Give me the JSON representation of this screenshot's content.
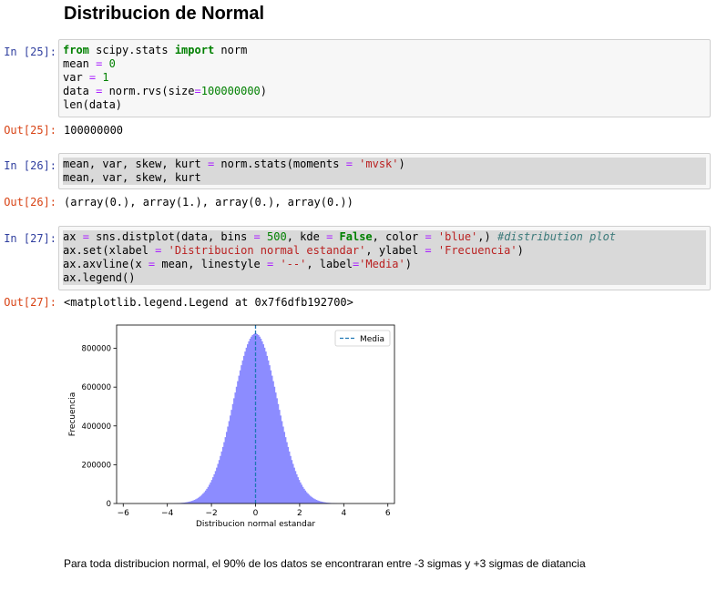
{
  "title": "Distribucion de Normal",
  "cells": [
    {
      "in_prompt": "In [25]:",
      "out_prompt": "Out[25]:",
      "output": "100000000"
    },
    {
      "in_prompt": "In [26]:",
      "out_prompt": "Out[26]:",
      "output": "(array(0.), array(1.), array(0.), array(0.))"
    },
    {
      "in_prompt": "In [27]:",
      "out_prompt": "Out[27]:",
      "output": "<matplotlib.legend.Legend at 0x7f6dfb192700>"
    }
  ],
  "code": {
    "c25": [
      [
        [
          "kw",
          "from"
        ],
        [
          "n",
          " scipy.stats "
        ],
        [
          "kw",
          "import"
        ],
        [
          "n",
          " norm"
        ]
      ],
      [
        [
          "n",
          "mean "
        ],
        [
          "op",
          "="
        ],
        [
          "n",
          " "
        ],
        [
          "num",
          "0"
        ]
      ],
      [
        [
          "n",
          "var "
        ],
        [
          "op",
          "="
        ],
        [
          "n",
          " "
        ],
        [
          "num",
          "1"
        ]
      ],
      [
        [
          "n",
          "data "
        ],
        [
          "op",
          "="
        ],
        [
          "n",
          " norm.rvs(size"
        ],
        [
          "op",
          "="
        ],
        [
          "num",
          "100000000"
        ],
        [
          "n",
          ")"
        ]
      ],
      [
        [
          "n",
          "len(data)"
        ]
      ]
    ],
    "c26": [
      [
        [
          "n",
          "mean, var, skew, kurt "
        ],
        [
          "op",
          "="
        ],
        [
          "n",
          " norm.stats(moments "
        ],
        [
          "op",
          "="
        ],
        [
          "n",
          " "
        ],
        [
          "str",
          "'mvsk'"
        ],
        [
          "n",
          ")"
        ]
      ],
      [
        [
          "n",
          "mean, var, skew, kurt"
        ]
      ]
    ],
    "c27": [
      [
        [
          "n",
          "ax "
        ],
        [
          "op",
          "="
        ],
        [
          "n",
          " sns.distplot(data, bins "
        ],
        [
          "op",
          "="
        ],
        [
          "n",
          " "
        ],
        [
          "num",
          "500"
        ],
        [
          "n",
          ", kde "
        ],
        [
          "op",
          "="
        ],
        [
          "n",
          " "
        ],
        [
          "kw",
          "False"
        ],
        [
          "n",
          ", color "
        ],
        [
          "op",
          "="
        ],
        [
          "n",
          " "
        ],
        [
          "str",
          "'blue'"
        ],
        [
          "n",
          ",) "
        ],
        [
          "cm",
          "#distribution plot"
        ]
      ],
      [
        [
          "n",
          "ax.set(xlabel "
        ],
        [
          "op",
          "="
        ],
        [
          "n",
          " "
        ],
        [
          "str",
          "'Distribucion normal estandar'"
        ],
        [
          "n",
          ", ylabel "
        ],
        [
          "op",
          "="
        ],
        [
          "n",
          " "
        ],
        [
          "str",
          "'Frecuencia'"
        ],
        [
          "n",
          ")"
        ]
      ],
      [
        [
          "n",
          "ax.axvline(x "
        ],
        [
          "op",
          "="
        ],
        [
          "n",
          " mean, linestyle "
        ],
        [
          "op",
          "="
        ],
        [
          "n",
          " "
        ],
        [
          "str",
          "'--'"
        ],
        [
          "n",
          ", label"
        ],
        [
          "op",
          "="
        ],
        [
          "str",
          "'Media'"
        ],
        [
          "n",
          ")"
        ]
      ],
      [
        [
          "n",
          "ax.legend()"
        ]
      ]
    ]
  },
  "chart_data": {
    "type": "bar",
    "title": "",
    "xlabel": "Distribucion normal estandar",
    "ylabel": "Frecuencia",
    "xlim": [
      -6.3,
      6.3
    ],
    "ylim": [
      0,
      920000
    ],
    "xticks": [
      -6,
      -4,
      -2,
      0,
      2,
      4,
      6
    ],
    "xtick_labels": [
      "−6",
      "−4",
      "−2",
      "0",
      "2",
      "4",
      "6"
    ],
    "yticks": [
      0,
      200000,
      400000,
      600000,
      800000
    ],
    "ytick_labels": [
      "0",
      "200000",
      "400000",
      "600000",
      "800000"
    ],
    "series": [
      {
        "name": "",
        "mean": 0,
        "std": 1,
        "peak": 877000,
        "x_range": [
          -5.6,
          5.6
        ],
        "bins": 500,
        "color": "#8c8cff"
      }
    ],
    "vline": {
      "x": 0,
      "linestyle": "--",
      "color": "#1f77b4",
      "label": "Media"
    },
    "legend": {
      "position": "top-right",
      "entries": [
        "Media"
      ]
    },
    "grid": false
  },
  "markdown": "Para toda distribucion normal, el 90% de los datos se encontraran entre -3 sigmas y +3 sigmas de diatancia"
}
